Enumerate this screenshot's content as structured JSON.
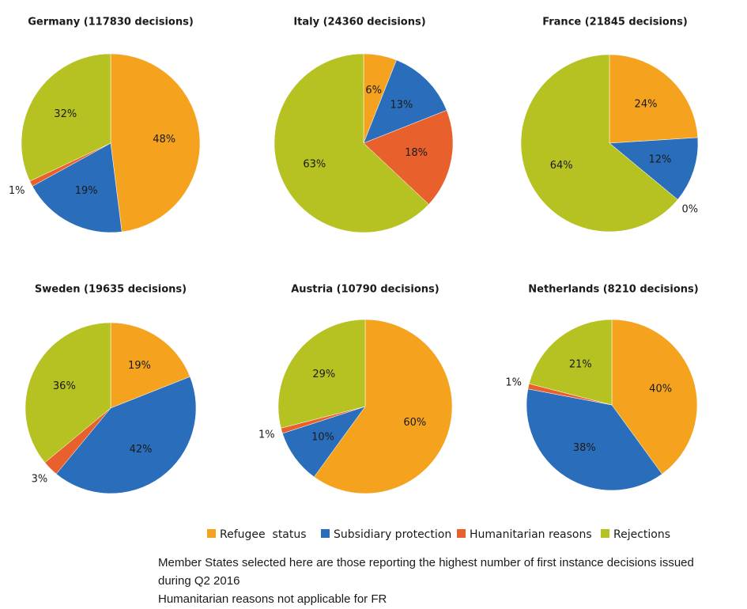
{
  "chart_data": [
    {
      "type": "pie",
      "title": "Germany (117830 decisions)",
      "categories": [
        "Refugee  status",
        "Subsidiary protection",
        "Humanitarian reasons",
        "Rejections"
      ],
      "colors": [
        "#f5a31e",
        "#2a6ebb",
        "#e8602c",
        "#b5c221"
      ],
      "values": [
        48,
        19,
        1,
        32
      ],
      "value_labels": [
        "48%",
        "19%",
        "1%",
        "32%"
      ]
    },
    {
      "type": "pie",
      "title": "Italy (24360 decisions)",
      "categories": [
        "Refugee  status",
        "Subsidiary protection",
        "Humanitarian reasons",
        "Rejections"
      ],
      "colors": [
        "#f5a31e",
        "#2a6ebb",
        "#e8602c",
        "#b5c221"
      ],
      "values": [
        6,
        13,
        18,
        63
      ],
      "value_labels": [
        "6%",
        "13%",
        "18%",
        "63%"
      ]
    },
    {
      "type": "pie",
      "title": "France (21845 decisions)",
      "categories": [
        "Refugee  status",
        "Subsidiary protection",
        "Humanitarian reasons",
        "Rejections"
      ],
      "colors": [
        "#f5a31e",
        "#2a6ebb",
        "#e8602c",
        "#b5c221"
      ],
      "values": [
        24,
        12,
        0,
        64
      ],
      "value_labels": [
        "24%",
        "12%",
        "0%",
        "64%"
      ]
    },
    {
      "type": "pie",
      "title": "Sweden (19635 decisions)",
      "categories": [
        "Refugee  status",
        "Subsidiary protection",
        "Humanitarian reasons",
        "Rejections"
      ],
      "colors": [
        "#f5a31e",
        "#2a6ebb",
        "#e8602c",
        "#b5c221"
      ],
      "values": [
        19,
        42,
        3,
        36
      ],
      "value_labels": [
        "19%",
        "42%",
        "3%",
        "36%"
      ]
    },
    {
      "type": "pie",
      "title": "Austria (10790 decisions)",
      "categories": [
        "Refugee  status",
        "Subsidiary protection",
        "Humanitarian reasons",
        "Rejections"
      ],
      "colors": [
        "#f5a31e",
        "#2a6ebb",
        "#e8602c",
        "#b5c221"
      ],
      "values": [
        60,
        10,
        1,
        29
      ],
      "value_labels": [
        "60%",
        "10%",
        "1%",
        "29%"
      ]
    },
    {
      "type": "pie",
      "title": "Netherlands (8210 decisions)",
      "categories": [
        "Refugee  status",
        "Subsidiary protection",
        "Humanitarian reasons",
        "Rejections"
      ],
      "colors": [
        "#f5a31e",
        "#2a6ebb",
        "#e8602c",
        "#b5c221"
      ],
      "values": [
        40,
        38,
        1,
        21
      ],
      "value_labels": [
        "40%",
        "38%",
        "1%",
        "21%"
      ]
    }
  ],
  "notes": [
    "Member States selected here are those reporting the highest number of first instance decisions issued",
    "during Q2 2016",
    "Humanitarian reasons not applicable for FR"
  ]
}
